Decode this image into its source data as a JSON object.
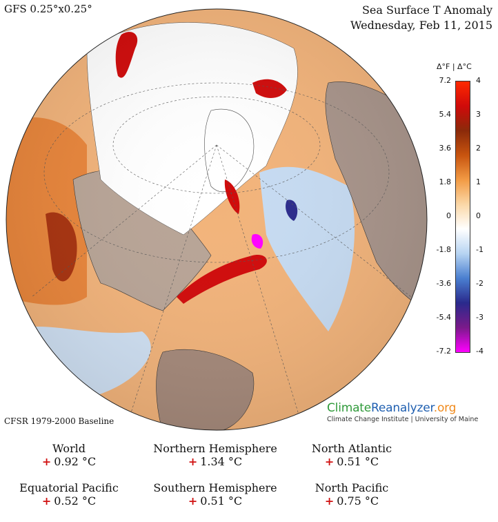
{
  "header": {
    "model": "GFS 0.25°x0.25°",
    "title": "Sea Surface T Anomaly",
    "date": "Wednesday, Feb 11, 2015"
  },
  "legend": {
    "units": "Δ°F | Δ°C",
    "fahrenheit_ticks": [
      "7.2",
      "5.4",
      "3.6",
      "1.8",
      "0",
      "-1.8",
      "-3.6",
      "-5.4",
      "-7.2"
    ],
    "celsius_ticks": [
      "4",
      "3",
      "2",
      "1",
      "0",
      "-1",
      "-2",
      "-3",
      "-4"
    ],
    "colors": [
      "#ff00ff",
      "#7a1a8a",
      "#2a2a8c",
      "#4a7fd0",
      "#b7d4f2",
      "#ffffff",
      "#fbd8a8",
      "#f29b45",
      "#c8540f",
      "#8a2a0a",
      "#d00a0a",
      "#ff2a00"
    ]
  },
  "footer": {
    "baseline": "CFSR 1979-2000 Baseline",
    "brand_climate": "Climate",
    "brand_reanalyzer": "Reanalyzer",
    "brand_org": ".org",
    "brand_sub": "Climate Change Institute | University of Maine"
  },
  "stats": [
    {
      "name": "World",
      "sign": "+",
      "value": "0.92 °C"
    },
    {
      "name": "Northern Hemisphere",
      "sign": "+",
      "value": "1.34 °C"
    },
    {
      "name": "North Atlantic",
      "sign": "+",
      "value": "0.51 °C"
    },
    {
      "name": "Equatorial Pacific",
      "sign": "+",
      "value": "0.52 °C"
    },
    {
      "name": "Southern Hemisphere",
      "sign": "+",
      "value": "0.51 °C"
    },
    {
      "name": "North Pacific",
      "sign": "+",
      "value": "0.75 °C"
    }
  ]
}
